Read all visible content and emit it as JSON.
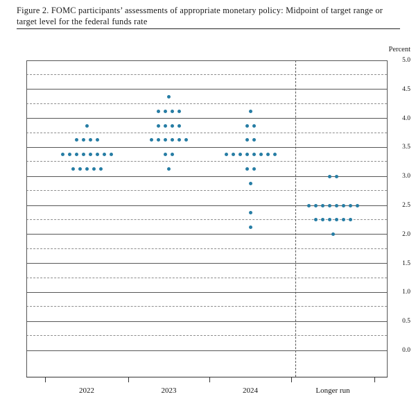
{
  "header": {
    "title": "Figure 2.  FOMC participants’ assessments of appropriate monetary policy:  Midpoint of target range or target level for the federal funds rate"
  },
  "chart_data": {
    "type": "scatter",
    "title": "FOMC participants’ assessments of appropriate monetary policy: Midpoint of target range or target level for the federal funds rate",
    "ylabel": "Percent",
    "ylim": [
      0.0,
      5.0
    ],
    "ytick_step": 0.5,
    "grid_minor_step": 0.25,
    "grid": "solid lines at each 0.5, dashed lines at each 0.25",
    "legend_position": "none",
    "ytick_labels": [
      "5.0",
      "4.5",
      "4.0",
      "3.5",
      "3.0",
      "2.5",
      "2.0",
      "1.5",
      "1.0",
      "0.5",
      "0.0"
    ],
    "categories": [
      "2022",
      "2023",
      "2024",
      "Longer run"
    ],
    "separator_before_category": "Longer run",
    "dot_color": "#267da4",
    "series": [
      {
        "category": "2022",
        "dots": [
          {
            "rate": 3.875,
            "count": 1
          },
          {
            "rate": 3.625,
            "count": 4
          },
          {
            "rate": 3.375,
            "count": 8
          },
          {
            "rate": 3.125,
            "count": 5
          }
        ]
      },
      {
        "category": "2023",
        "dots": [
          {
            "rate": 4.375,
            "count": 1
          },
          {
            "rate": 4.125,
            "count": 4
          },
          {
            "rate": 3.875,
            "count": 4
          },
          {
            "rate": 3.625,
            "count": 6
          },
          {
            "rate": 3.375,
            "count": 2
          },
          {
            "rate": 3.125,
            "count": 1
          }
        ]
      },
      {
        "category": "2024",
        "dots": [
          {
            "rate": 4.125,
            "count": 1
          },
          {
            "rate": 3.875,
            "count": 2
          },
          {
            "rate": 3.625,
            "count": 2
          },
          {
            "rate": 3.375,
            "count": 8
          },
          {
            "rate": 3.125,
            "count": 2
          },
          {
            "rate": 2.875,
            "count": 1
          },
          {
            "rate": 2.375,
            "count": 1
          },
          {
            "rate": 2.125,
            "count": 1
          }
        ]
      },
      {
        "category": "Longer run",
        "dots": [
          {
            "rate": 3.0,
            "count": 2
          },
          {
            "rate": 2.5,
            "count": 8
          },
          {
            "rate": 2.25,
            "count": 6
          },
          {
            "rate": 2.0,
            "count": 1
          }
        ]
      }
    ]
  }
}
